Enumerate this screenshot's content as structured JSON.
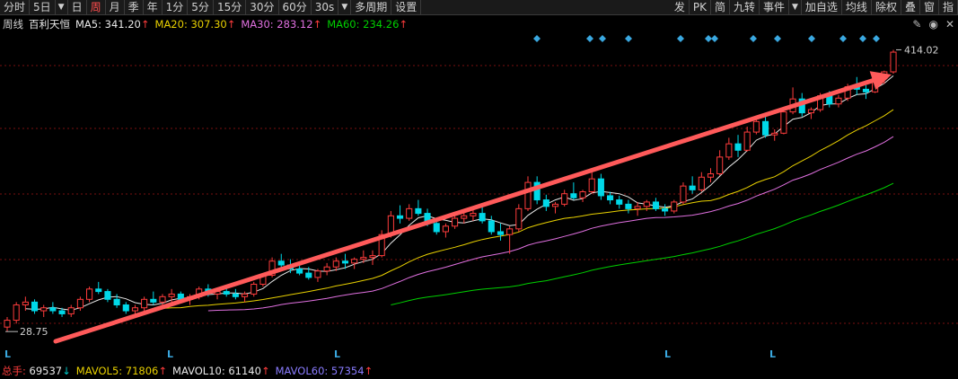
{
  "toolbar": {
    "left": [
      {
        "label": "分时",
        "active": false
      },
      {
        "label": "5日",
        "active": false,
        "caret": true
      },
      {
        "label": "日",
        "active": false
      },
      {
        "label": "周",
        "active": true
      },
      {
        "label": "月",
        "active": false
      },
      {
        "label": "季",
        "active": false
      },
      {
        "label": "年",
        "active": false
      },
      {
        "label": "1分",
        "active": false
      },
      {
        "label": "5分",
        "active": false
      },
      {
        "label": "15分",
        "active": false
      },
      {
        "label": "30分",
        "active": false
      },
      {
        "label": "60分",
        "active": false
      },
      {
        "label": "30s",
        "active": false,
        "caret": true
      },
      {
        "label": "多周期",
        "active": false
      },
      {
        "label": "设置",
        "active": false
      }
    ],
    "right": [
      {
        "label": "发"
      },
      {
        "label": "PK"
      },
      {
        "label": "简"
      },
      {
        "label": "九转"
      },
      {
        "label": "事件",
        "caret": true
      },
      {
        "label": "加自选"
      },
      {
        "label": "均线"
      },
      {
        "label": "除权"
      },
      {
        "label": "叠"
      },
      {
        "label": "窗"
      },
      {
        "label": "指"
      }
    ]
  },
  "info": {
    "period": "周线",
    "name": "百利天恒",
    "ma5": {
      "label": "MA5: 341.20",
      "arrow": "↑",
      "color": "#e8e8e8"
    },
    "ma20": {
      "label": "MA20: 307.30",
      "arrow": "↑",
      "color": "#e8d000"
    },
    "ma30": {
      "label": "MA30: 283.12",
      "arrow": "↑",
      "color": "#e070e0"
    },
    "ma60": {
      "label": "MA60: 234.26",
      "arrow": "↑",
      "color": "#00d000"
    },
    "icons": [
      "edit-icon",
      "eye-icon",
      "close-icon"
    ]
  },
  "chart_data": {
    "type": "candlestick",
    "y_log": true,
    "y_min_marker": "28.75",
    "y_max_marker": "414.02",
    "y_min_value": 28.75,
    "y_max_value": 414.02,
    "l_markers": [
      "L",
      "L",
      "L",
      "L",
      "L"
    ],
    "diamond_count": 12,
    "arrow": {
      "from": [
        0.06,
        28.75
      ],
      "to": [
        0.99,
        380
      ]
    },
    "candles": [
      [
        30,
        33,
        28.8,
        32
      ],
      [
        32,
        38,
        31,
        37
      ],
      [
        37,
        40,
        35,
        38
      ],
      [
        38,
        39,
        34,
        35
      ],
      [
        35,
        37,
        33,
        36
      ],
      [
        36,
        38,
        34,
        35
      ],
      [
        35,
        36,
        33,
        34
      ],
      [
        34,
        37,
        33,
        36
      ],
      [
        36,
        40,
        35,
        39
      ],
      [
        39,
        44,
        38,
        43
      ],
      [
        43,
        46,
        41,
        42
      ],
      [
        42,
        43,
        38,
        39
      ],
      [
        39,
        41,
        36,
        37
      ],
      [
        37,
        38,
        34,
        35
      ],
      [
        35,
        37,
        33,
        36
      ],
      [
        36,
        40,
        35,
        39
      ],
      [
        39,
        42,
        37,
        38
      ],
      [
        38,
        41,
        36,
        40
      ],
      [
        40,
        43,
        38,
        41
      ],
      [
        41,
        42,
        38,
        39
      ],
      [
        39,
        41,
        37,
        40
      ],
      [
        40,
        44,
        39,
        43
      ],
      [
        43,
        45,
        40,
        41
      ],
      [
        41,
        43,
        39,
        42
      ],
      [
        42,
        44,
        40,
        41
      ],
      [
        41,
        43,
        39,
        40
      ],
      [
        40,
        42,
        38,
        41
      ],
      [
        41,
        46,
        40,
        45
      ],
      [
        45,
        50,
        44,
        49
      ],
      [
        49,
        58,
        48,
        56
      ],
      [
        56,
        60,
        52,
        54
      ],
      [
        54,
        57,
        50,
        52
      ],
      [
        52,
        55,
        49,
        50
      ],
      [
        50,
        53,
        47,
        48
      ],
      [
        48,
        52,
        46,
        51
      ],
      [
        51,
        55,
        49,
        53
      ],
      [
        53,
        58,
        51,
        56
      ],
      [
        56,
        60,
        52,
        55
      ],
      [
        55,
        58,
        52,
        57
      ],
      [
        57,
        62,
        55,
        58
      ],
      [
        58,
        62,
        54,
        59
      ],
      [
        59,
        75,
        58,
        72
      ],
      [
        72,
        90,
        70,
        86
      ],
      [
        86,
        95,
        80,
        84
      ],
      [
        84,
        96,
        82,
        92
      ],
      [
        92,
        100,
        86,
        88
      ],
      [
        88,
        92,
        78,
        80
      ],
      [
        80,
        84,
        72,
        74
      ],
      [
        74,
        80,
        70,
        78
      ],
      [
        78,
        86,
        76,
        84
      ],
      [
        84,
        90,
        80,
        86
      ],
      [
        86,
        92,
        82,
        88
      ],
      [
        88,
        94,
        80,
        82
      ],
      [
        82,
        86,
        72,
        74
      ],
      [
        74,
        80,
        68,
        72
      ],
      [
        72,
        78,
        60,
        76
      ],
      [
        76,
        96,
        74,
        92
      ],
      [
        92,
        125,
        90,
        118
      ],
      [
        118,
        125,
        96,
        100
      ],
      [
        100,
        105,
        90,
        94
      ],
      [
        94,
        98,
        88,
        96
      ],
      [
        96,
        110,
        94,
        106
      ],
      [
        106,
        118,
        100,
        102
      ],
      [
        102,
        110,
        98,
        108
      ],
      [
        108,
        130,
        106,
        122
      ],
      [
        122,
        128,
        100,
        104
      ],
      [
        104,
        108,
        96,
        100
      ],
      [
        100,
        104,
        92,
        96
      ],
      [
        96,
        100,
        88,
        92
      ],
      [
        92,
        98,
        86,
        94
      ],
      [
        94,
        100,
        90,
        98
      ],
      [
        98,
        102,
        90,
        92
      ],
      [
        92,
        96,
        86,
        90
      ],
      [
        90,
        100,
        88,
        98
      ],
      [
        98,
        118,
        96,
        114
      ],
      [
        114,
        125,
        106,
        110
      ],
      [
        110,
        130,
        108,
        124
      ],
      [
        124,
        135,
        118,
        128
      ],
      [
        128,
        160,
        126,
        150
      ],
      [
        150,
        180,
        146,
        170
      ],
      [
        170,
        185,
        150,
        160
      ],
      [
        160,
        200,
        158,
        190
      ],
      [
        190,
        220,
        186,
        210
      ],
      [
        210,
        225,
        180,
        185
      ],
      [
        185,
        195,
        175,
        188
      ],
      [
        188,
        240,
        186,
        230
      ],
      [
        230,
        290,
        225,
        260
      ],
      [
        260,
        275,
        220,
        228
      ],
      [
        228,
        240,
        215,
        235
      ],
      [
        235,
        275,
        230,
        268
      ],
      [
        268,
        280,
        240,
        248
      ],
      [
        248,
        270,
        240,
        262
      ],
      [
        262,
        300,
        255,
        292
      ],
      [
        292,
        320,
        270,
        285
      ],
      [
        285,
        296,
        260,
        278
      ],
      [
        278,
        330,
        275,
        315
      ],
      [
        315,
        340,
        300,
        336
      ],
      [
        336,
        414,
        330,
        405
      ]
    ]
  },
  "volume": {
    "zongshou_label": "总手:",
    "zongshou_value": "69537",
    "zongshou_arrow": "↓",
    "mavol5": "MAVOL5: 71806",
    "mavol5_arrow": "↑",
    "mavol10": "MAVOL10: 61140",
    "mavol10_arrow": "↑",
    "mavol60": "MAVOL60: 57354",
    "mavol60_arrow": "↑"
  },
  "colors": {
    "up": "#ff3c3c",
    "down": "#00d8e8",
    "ma5": "#e8e8e8",
    "ma20": "#e8d000",
    "ma30": "#e070e0",
    "ma60": "#00d000",
    "grid": "#7a1010",
    "diamond": "#3aa8e0",
    "trend_arrow": "#ff5a5a"
  }
}
